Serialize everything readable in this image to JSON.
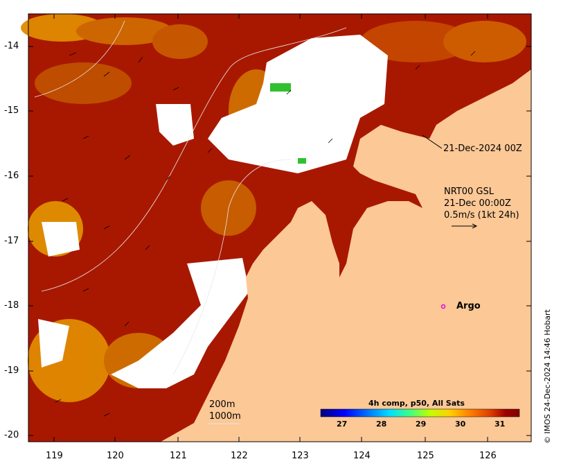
{
  "map": {
    "lon_ticks": [
      "119",
      "120",
      "121",
      "122",
      "123",
      "124",
      "125",
      "126"
    ],
    "lat_ticks": [
      "-14",
      "-15",
      "-16",
      "-17",
      "-18",
      "-19",
      "-20"
    ],
    "date_annotation": "21-Dec-2024 00Z",
    "current_info": {
      "line1": "NRT00 GSL",
      "line2": "21-Dec 00:00Z",
      "line3": "0.5m/s (1kt 24h)"
    },
    "argo_label": "Argo",
    "depth_labels": [
      "200m",
      "1000m"
    ],
    "colorbar": {
      "title": "4h comp, p50, All Sats",
      "ticks": [
        "27",
        "28",
        "29",
        "30",
        "31"
      ],
      "colors": [
        "#00007f",
        "#0000ff",
        "#0080ff",
        "#00e0ff",
        "#40ff80",
        "#c0ff00",
        "#ffd000",
        "#ff8000",
        "#e04000",
        "#a00000",
        "#800000"
      ]
    },
    "credit": "© IMOS 24-Dec-2024 14:46 Hobart",
    "colors": {
      "land": "#fbc896",
      "sst_warm": "#a01400",
      "sst_mid": "#c84600",
      "sst_cool": "#e38c00",
      "cloud": "#ffffff",
      "argo": "#e000e0"
    }
  }
}
